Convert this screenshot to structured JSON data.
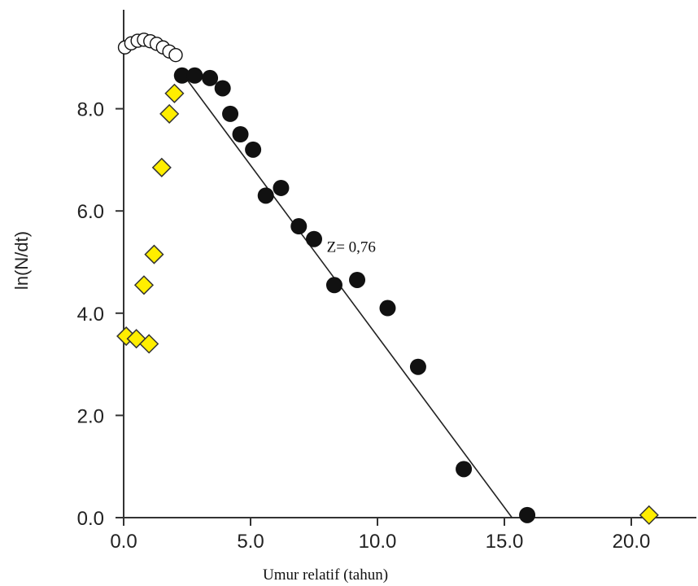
{
  "chart_data": {
    "type": "scatter",
    "title": "",
    "xlabel": "Umur relatif (tahun)",
    "ylabel": "ln(N/dt)",
    "xlim": [
      0,
      23.5
    ],
    "ylim": [
      0,
      9.9
    ],
    "x_ticks": [
      "0.0",
      "5.0",
      "10.0",
      "15.0",
      "20.0"
    ],
    "x_tick_values": [
      0,
      5,
      10,
      15,
      20
    ],
    "y_ticks": [
      "0.0",
      "2.0",
      "4.0",
      "6.0",
      "8.0"
    ],
    "y_tick_values": [
      0,
      2,
      4,
      6,
      8
    ],
    "grid": false,
    "legend": "none",
    "series": [
      {
        "marker": "filled-circle",
        "color": "#111111",
        "points": [
          [
            2.3,
            8.65
          ],
          [
            2.8,
            8.65
          ],
          [
            3.4,
            8.6
          ],
          [
            3.9,
            8.4
          ],
          [
            4.2,
            7.9
          ],
          [
            4.6,
            7.5
          ],
          [
            5.1,
            7.2
          ],
          [
            5.6,
            6.3
          ],
          [
            6.2,
            6.45
          ],
          [
            6.9,
            5.7
          ],
          [
            7.5,
            5.45
          ],
          [
            8.3,
            4.55
          ],
          [
            9.2,
            4.65
          ],
          [
            10.4,
            4.1
          ],
          [
            11.6,
            2.95
          ],
          [
            13.4,
            0.95
          ],
          [
            15.9,
            0.05
          ]
        ]
      },
      {
        "marker": "diamond",
        "color": "#ffee00",
        "points": [
          [
            0.1,
            3.55
          ],
          [
            0.5,
            3.5
          ],
          [
            1.0,
            3.4
          ],
          [
            0.8,
            4.55
          ],
          [
            1.2,
            5.15
          ],
          [
            1.5,
            6.85
          ],
          [
            1.8,
            7.9
          ],
          [
            2.0,
            8.3
          ],
          [
            20.7,
            0.05
          ]
        ]
      },
      {
        "marker": "open-circle",
        "color": "#111111",
        "points": [
          [
            0.05,
            9.2
          ],
          [
            0.3,
            9.28
          ],
          [
            0.55,
            9.33
          ],
          [
            0.8,
            9.35
          ],
          [
            1.05,
            9.32
          ],
          [
            1.3,
            9.27
          ],
          [
            1.55,
            9.2
          ],
          [
            1.8,
            9.12
          ],
          [
            2.05,
            9.05
          ]
        ]
      }
    ],
    "regression_line": {
      "x": [
        2.3,
        15.3
      ],
      "y": [
        8.7,
        0.0
      ],
      "label": "Z= 0,76",
      "label_at": [
        8.0,
        5.2
      ]
    }
  }
}
